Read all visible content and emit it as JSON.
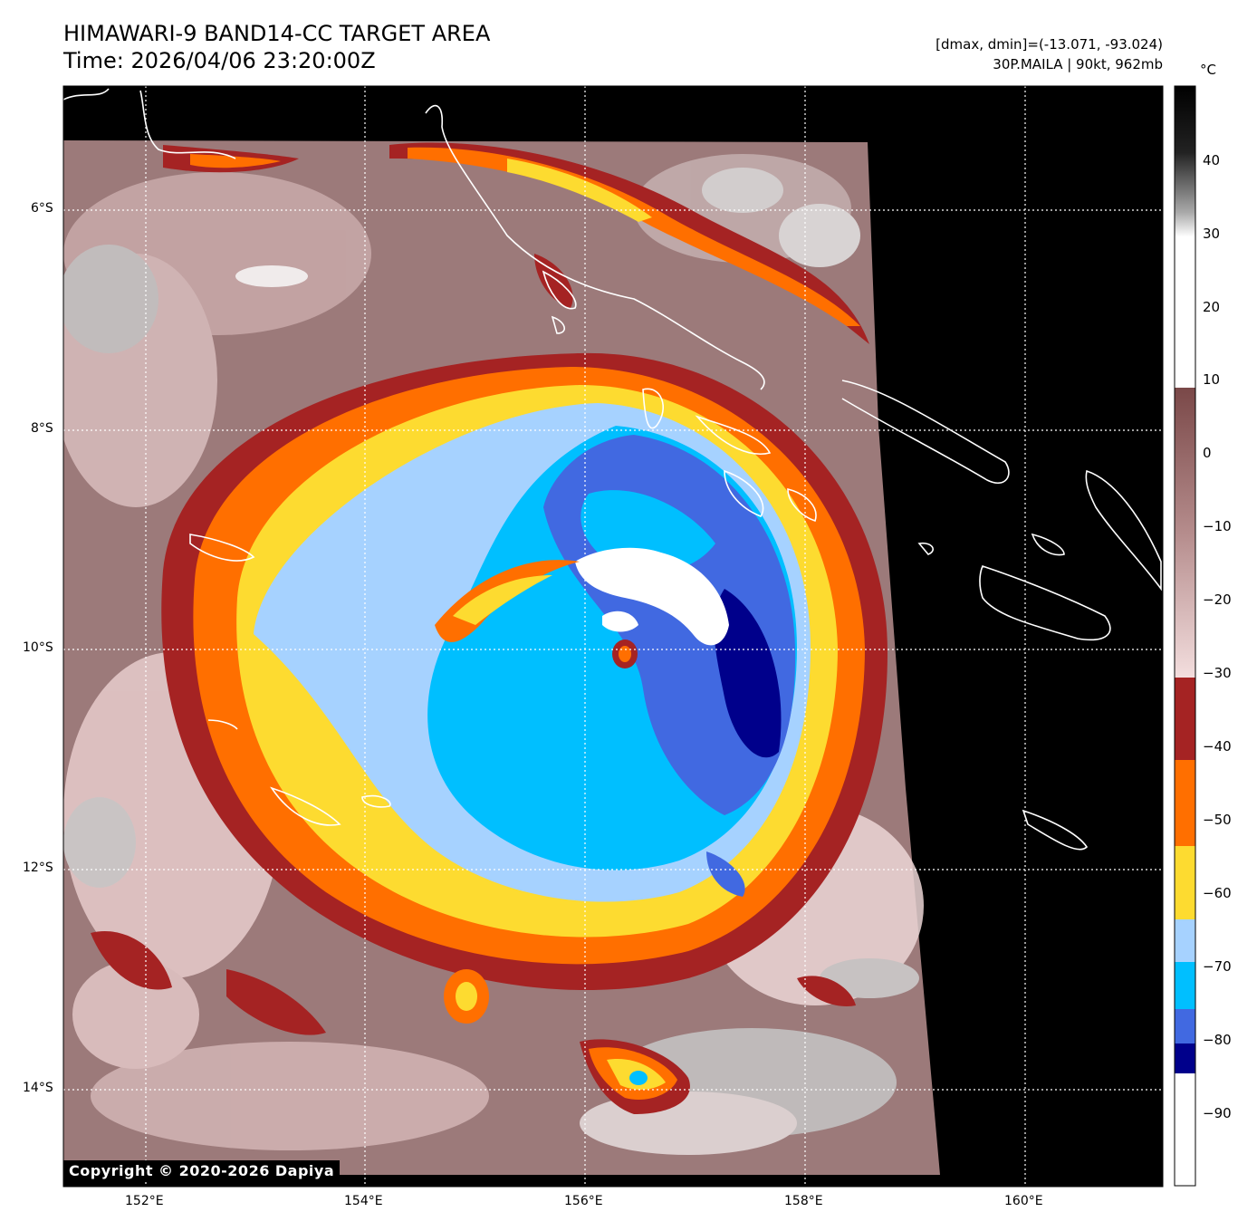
{
  "header": {
    "title_line1": "HIMAWARI-9 BAND14-CC TARGET AREA",
    "title_line2": "Time: 2026/04/06 23:20:00Z",
    "range_text": "[dmax, dmin]=(-13.071, -93.024)",
    "storm_text": "30P.MAILA | 90kt, 962mb"
  },
  "axes": {
    "lat_labels": [
      "6°S",
      "8°S",
      "10°S",
      "12°S",
      "14°S"
    ],
    "lon_labels": [
      "152°E",
      "154°E",
      "156°E",
      "158°E",
      "160°E"
    ]
  },
  "colorbar": {
    "unit": "°C",
    "labels": [
      "40",
      "30",
      "20",
      "10",
      "0",
      "−10",
      "−20",
      "−30",
      "−40",
      "−50",
      "−60",
      "−70",
      "−80",
      "−90"
    ],
    "bands": [
      {
        "from": -30,
        "to": 10,
        "color": "#8a5a5a",
        "gradient": true
      },
      {
        "from": -40,
        "to": -30,
        "color": "#a52323"
      },
      {
        "from": -50,
        "to": -40,
        "color": "#ff6f00"
      },
      {
        "from": -60,
        "to": -50,
        "color": "#fddb30"
      },
      {
        "from": -70,
        "to": -60,
        "color": "#a6d2ff"
      },
      {
        "from": -80,
        "to": -70,
        "color": "#00bfff"
      },
      {
        "from": -85,
        "to": -80,
        "color": "#4169e1"
      },
      {
        "from": -89,
        "to": -85,
        "color": "#00008b"
      },
      {
        "from": -100,
        "to": -89,
        "color": "#ffffff"
      }
    ]
  },
  "storm": {
    "name": "MAILA",
    "id": "30P",
    "intensity_kt": 90,
    "pressure_mb": 962,
    "center_lon": 156.3,
    "center_lat": -10.0
  },
  "copyright": "Copyright © 2020-2026 Dapiya"
}
